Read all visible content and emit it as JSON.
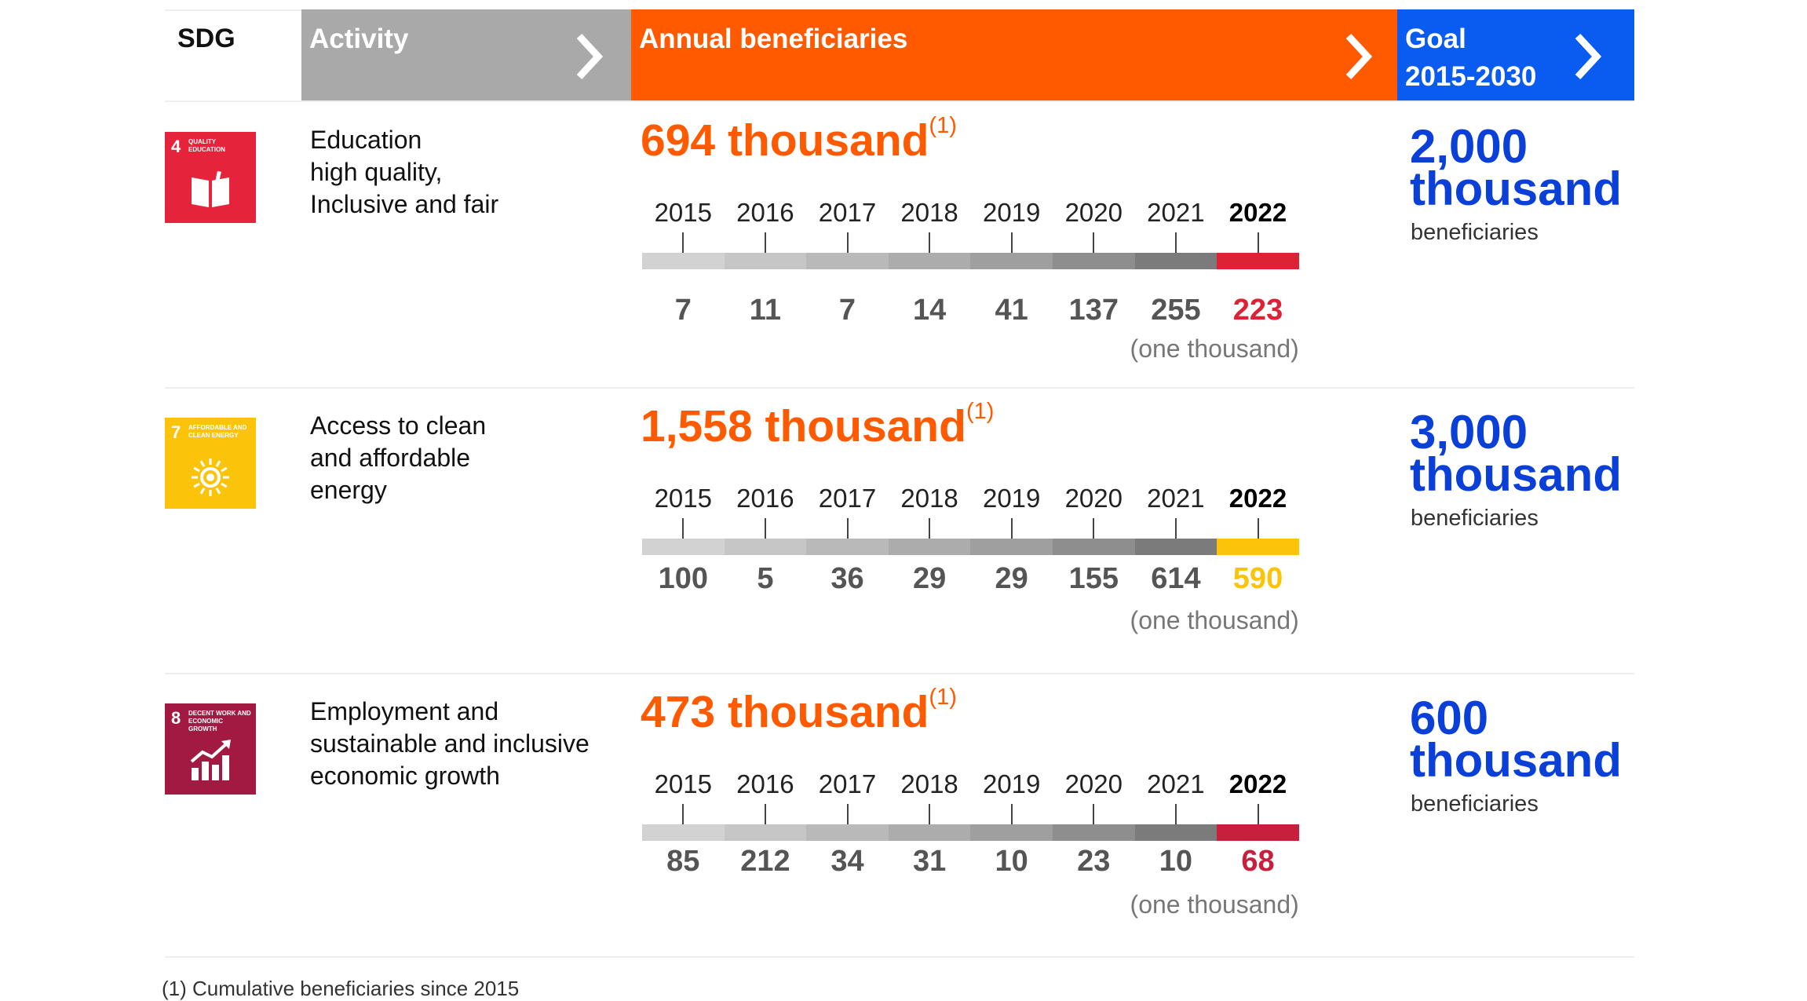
{
  "header": {
    "sdg": "SDG",
    "activity": "Activity",
    "annual": "Annual beneficiaries",
    "goal": "Goal\n2015-2030",
    "colors": {
      "activity": "#a9a9a9",
      "annual": "#ff5a00",
      "goal": "#0a5cf0"
    }
  },
  "rows": [
    {
      "icon": "sdg-4-quality-education-icon",
      "sdg_number": "4",
      "sdg_caption": "QUALITY EDUCATION",
      "sdg_color": "#e5243b",
      "activity": "Education\nhigh quality,\nInclusive and fair",
      "cumulative": "694 thousand",
      "cumulative_note": "(1)",
      "unit": "(one thousand)",
      "goal_value": "2,000\nthousand",
      "goal_sub": "beneficiaries",
      "highlight_color": "#dd2236"
    },
    {
      "icon": "sdg-7-affordable-clean-energy-icon",
      "sdg_number": "7",
      "sdg_caption": "AFFORDABLE AND CLEAN ENERGY",
      "sdg_color": "#fcc30b",
      "activity": "Access to clean\nand affordable\nenergy",
      "cumulative": "1,558 thousand",
      "cumulative_note": "(1)",
      "unit": "(one thousand)",
      "goal_value": "3,000\nthousand",
      "goal_sub": "beneficiaries",
      "highlight_color": "#fcc30b"
    },
    {
      "icon": "sdg-8-decent-work-economic-growth-icon",
      "sdg_number": "8",
      "sdg_caption": "DECENT WORK AND ECONOMIC GROWTH",
      "sdg_color": "#a21942",
      "activity": "Employment and\nsustainable and inclusive\neconomic growth",
      "cumulative": "473 thousand",
      "cumulative_note": "(1)",
      "unit": "(one thousand)",
      "goal_value": "600\nthousand",
      "goal_sub": "beneficiaries",
      "highlight_color": "#c8203c"
    }
  ],
  "footnote": "(1) Cumulative beneficiaries since 2015",
  "chart_data": [
    {
      "type": "table",
      "title": "Education high quality, Inclusive and fair",
      "unit": "(one thousand)",
      "x": [
        "2015",
        "2016",
        "2017",
        "2018",
        "2019",
        "2020",
        "2021",
        "2022"
      ],
      "values": [
        7,
        11,
        7,
        14,
        41,
        137,
        255,
        223
      ],
      "cumulative": "694 thousand",
      "goal": "2,000 thousand"
    },
    {
      "type": "table",
      "title": "Access to clean and affordable energy",
      "unit": "(one thousand)",
      "x": [
        "2015",
        "2016",
        "2017",
        "2018",
        "2019",
        "2020",
        "2021",
        "2022"
      ],
      "values": [
        100,
        5,
        36,
        29,
        29,
        155,
        614,
        590
      ],
      "cumulative": "1,558 thousand",
      "goal": "3,000 thousand"
    },
    {
      "type": "table",
      "title": "Employment and sustainable and inclusive economic growth",
      "unit": "(one thousand)",
      "x": [
        "2015",
        "2016",
        "2017",
        "2018",
        "2019",
        "2020",
        "2021",
        "2022"
      ],
      "values": [
        85,
        212,
        34,
        31,
        10,
        23,
        10,
        68
      ],
      "cumulative": "473 thousand",
      "goal": "600 thousand"
    }
  ],
  "timeline_colors": [
    "#d2d2d2",
    "#c6c6c6",
    "#b9b9b9",
    "#acacac",
    "#9f9f9f",
    "#8e8e8e",
    "#7b7b7b"
  ]
}
